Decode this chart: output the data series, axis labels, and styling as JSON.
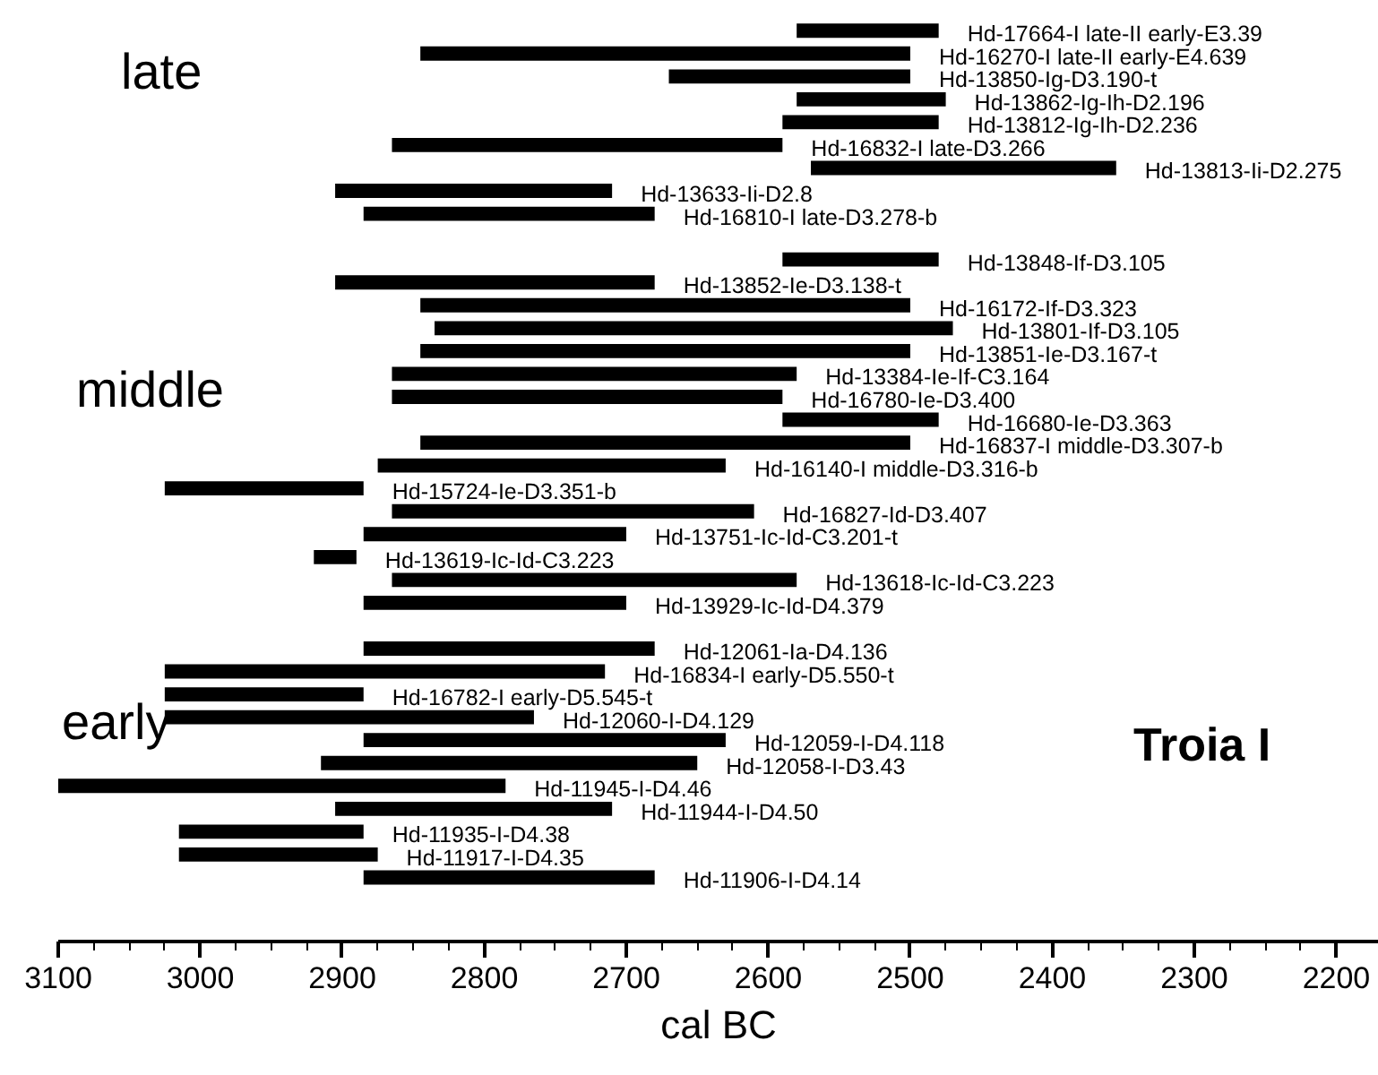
{
  "chart_data": {
    "type": "bar",
    "orientation": "horizontal",
    "color": "#000000",
    "categories": [
      "Hd-17664-I late-II early-E3.39",
      "Hd-16270-I late-II early-E4.639",
      "Hd-13850-Ig-D3.190-t",
      "Hd-13862-Ig-Ih-D2.196",
      "Hd-13812-Ig-Ih-D2.236",
      "Hd-16832-I late-D3.266",
      "Hd-13813-Ii-D2.275",
      "Hd-13633-Ii-D2.8",
      "Hd-16810-I late-D3.278-b",
      null,
      "Hd-13848-If-D3.105",
      "Hd-13852-Ie-D3.138-t",
      "Hd-16172-If-D3.323",
      "Hd-13801-If-D3.105",
      "Hd-13851-Ie-D3.167-t",
      "Hd-13384-Ie-If-C3.164",
      "Hd-16780-Ie-D3.400",
      "Hd-16680-Ie-D3.363",
      "Hd-16837-I middle-D3.307-b",
      "Hd-16140-I middle-D3.316-b",
      "Hd-15724-Ie-D3.351-b",
      "Hd-16827-Id-D3.407",
      "Hd-13751-Ic-Id-C3.201-t",
      "Hd-13619-Ic-Id-C3.223",
      "Hd-13618-Ic-Id-C3.223",
      "Hd-13929-Ic-Id-D4.379",
      null,
      "Hd-12061-Ia-D4.136",
      "Hd-16834-I early-D5.550-t",
      "Hd-16782-I early-D5.545-t",
      "Hd-12060-I-D4.129",
      "Hd-12059-I-D4.118",
      "Hd-12058-I-D3.43",
      "Hd-11945-I-D4.46",
      "Hd-11944-I-D4.50",
      "Hd-11935-I-D4.38",
      "Hd-11917-I-D4.35",
      "Hd-11906-I-D4.14"
    ],
    "base": [
      2480,
      2500,
      2500,
      2475,
      2480,
      2590,
      2355,
      2710,
      2680,
      null,
      2480,
      2680,
      2500,
      2470,
      2500,
      2580,
      2590,
      2480,
      2500,
      2630,
      2885,
      2610,
      2700,
      2890,
      2580,
      2700,
      null,
      2680,
      2715,
      2885,
      2765,
      2630,
      2650,
      2785,
      2710,
      2885,
      2875,
      2680
    ],
    "values": [
      100,
      345,
      170,
      105,
      110,
      275,
      215,
      195,
      205,
      null,
      110,
      225,
      345,
      365,
      345,
      285,
      275,
      110,
      345,
      245,
      140,
      255,
      185,
      30,
      285,
      185,
      null,
      205,
      310,
      140,
      260,
      255,
      265,
      315,
      195,
      130,
      140,
      205
    ],
    "xlim": [
      3100,
      2170
    ],
    "xticks": [
      3100,
      3000,
      2900,
      2800,
      2700,
      2600,
      2500,
      2400,
      2300,
      2200
    ],
    "xlabel": "cal BC",
    "grid": false,
    "annotations": [
      "late",
      "middle",
      "early",
      "Troia I"
    ]
  }
}
